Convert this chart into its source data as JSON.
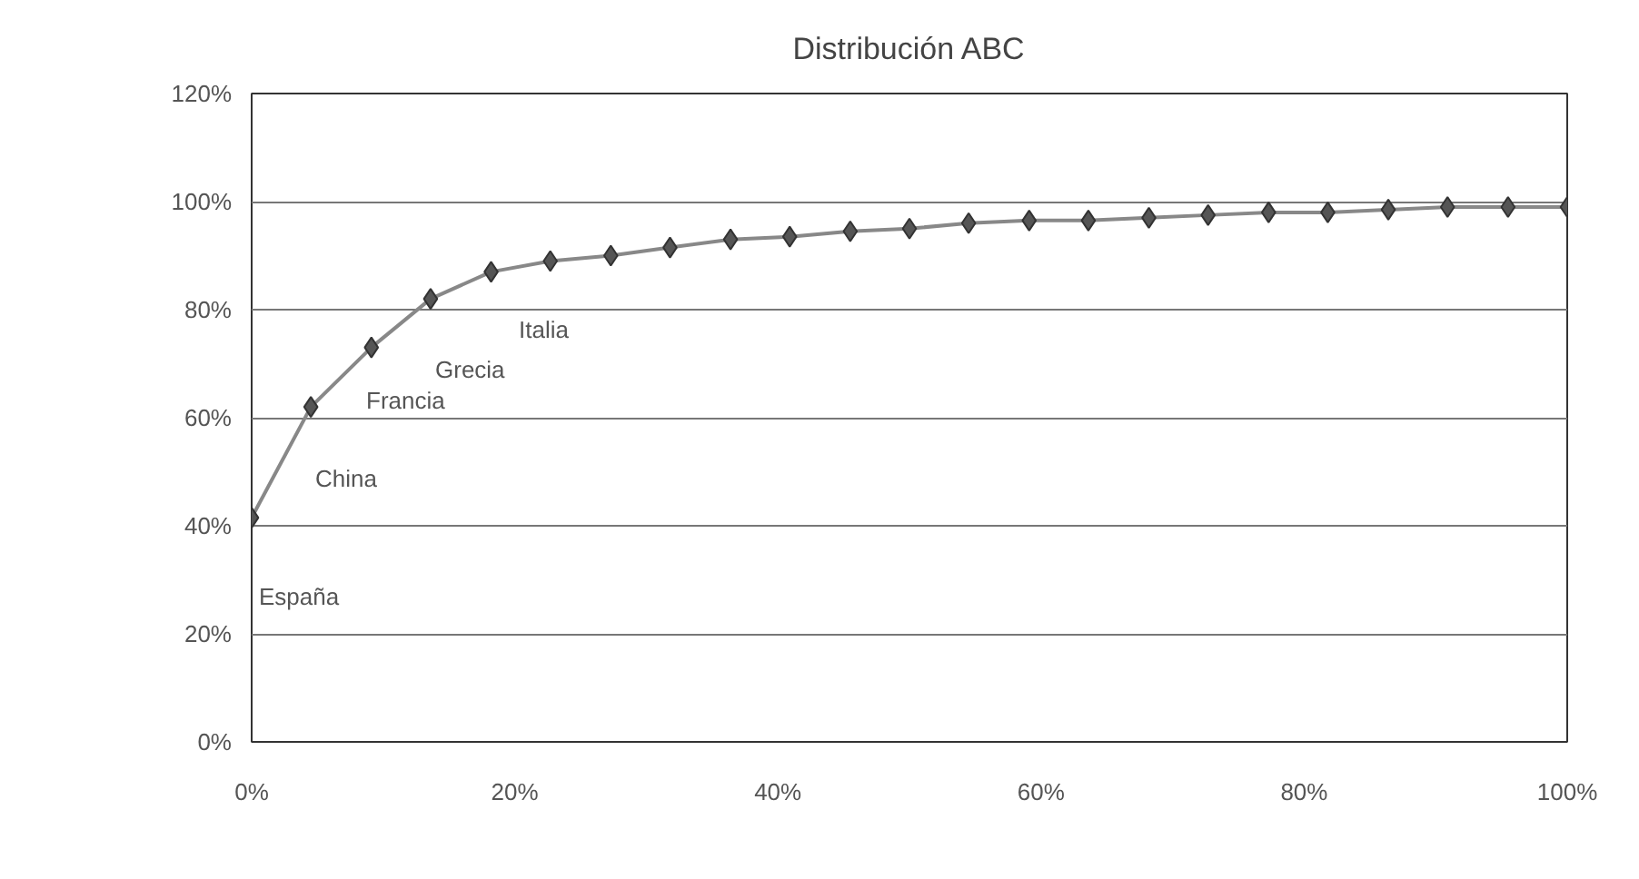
{
  "chart_data": {
    "type": "line",
    "title": "Distribución ABC",
    "x": [
      0,
      4.5,
      9.1,
      13.6,
      18.2,
      22.7,
      27.3,
      31.8,
      36.4,
      40.9,
      45.5,
      50,
      54.5,
      59.1,
      63.6,
      68.2,
      72.7,
      77.3,
      81.8,
      86.4,
      90.9,
      95.5,
      100
    ],
    "series": [
      {
        "color": "#555555",
        "values": [
          41.5,
          62,
          73,
          82,
          87,
          89,
          90,
          91.5,
          93,
          93.5,
          94.5,
          95,
          96,
          96.5,
          96.5,
          97,
          97.5,
          98,
          98,
          98.5,
          99,
          99,
          99
        ]
      }
    ],
    "xlim": [
      0,
      100
    ],
    "ylim": [
      0,
      120
    ],
    "xticks": [
      {
        "value": 0,
        "label": "0%"
      },
      {
        "value": 20,
        "label": "20%"
      },
      {
        "value": 40,
        "label": "40%"
      },
      {
        "value": 60,
        "label": "60%"
      },
      {
        "value": 80,
        "label": "80%"
      },
      {
        "value": 100,
        "label": "100%"
      }
    ],
    "yticks": [
      {
        "value": 0,
        "label": "0%"
      },
      {
        "value": 20,
        "label": "20%"
      },
      {
        "value": 40,
        "label": "40%"
      },
      {
        "value": 60,
        "label": "60%"
      },
      {
        "value": 80,
        "label": "80%"
      },
      {
        "value": 100,
        "label": "100%"
      },
      {
        "value": 120,
        "label": "120%"
      }
    ],
    "annotations": [
      "España",
      "China",
      "Francia",
      "Grecia",
      "Italia"
    ],
    "grid": "y",
    "marker": "diamond",
    "line_style": "solid"
  }
}
